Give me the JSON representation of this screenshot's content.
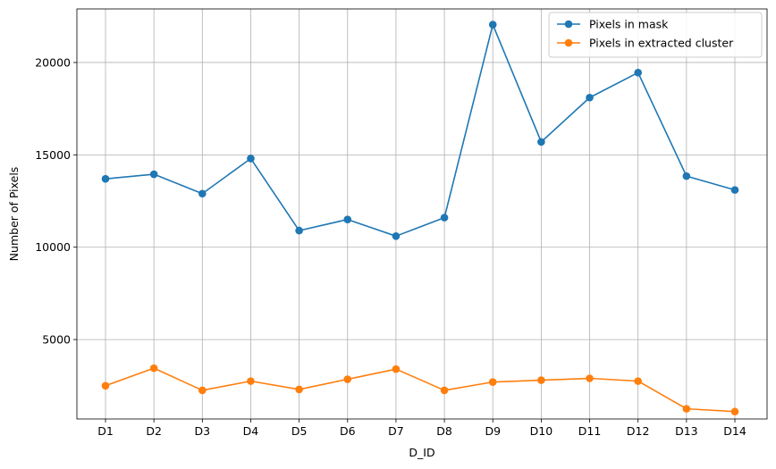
{
  "chart_data": {
    "type": "line",
    "title": "",
    "xlabel": "D_ID",
    "ylabel": "Number of Pixels",
    "categories": [
      "D1",
      "D2",
      "D3",
      "D4",
      "D5",
      "D6",
      "D7",
      "D8",
      "D9",
      "D10",
      "D11",
      "D12",
      "D13",
      "D14"
    ],
    "y_ticks": [
      5000,
      10000,
      15000,
      20000
    ],
    "ylim": [
      700,
      22900
    ],
    "grid": true,
    "legend_position": "top-right",
    "series": [
      {
        "name": "Pixels in mask",
        "color": "#1f77b4",
        "marker": "circle",
        "values": [
          13700,
          13950,
          12900,
          14800,
          10900,
          11500,
          10600,
          11600,
          22050,
          15700,
          18100,
          19450,
          13850,
          13100
        ]
      },
      {
        "name": "Pixels in extracted cluster",
        "color": "#ff7f0e",
        "marker": "circle",
        "values": [
          2500,
          3450,
          2250,
          2750,
          2300,
          2850,
          3400,
          2250,
          2700,
          2800,
          2900,
          2750,
          1250,
          1100
        ]
      }
    ]
  }
}
